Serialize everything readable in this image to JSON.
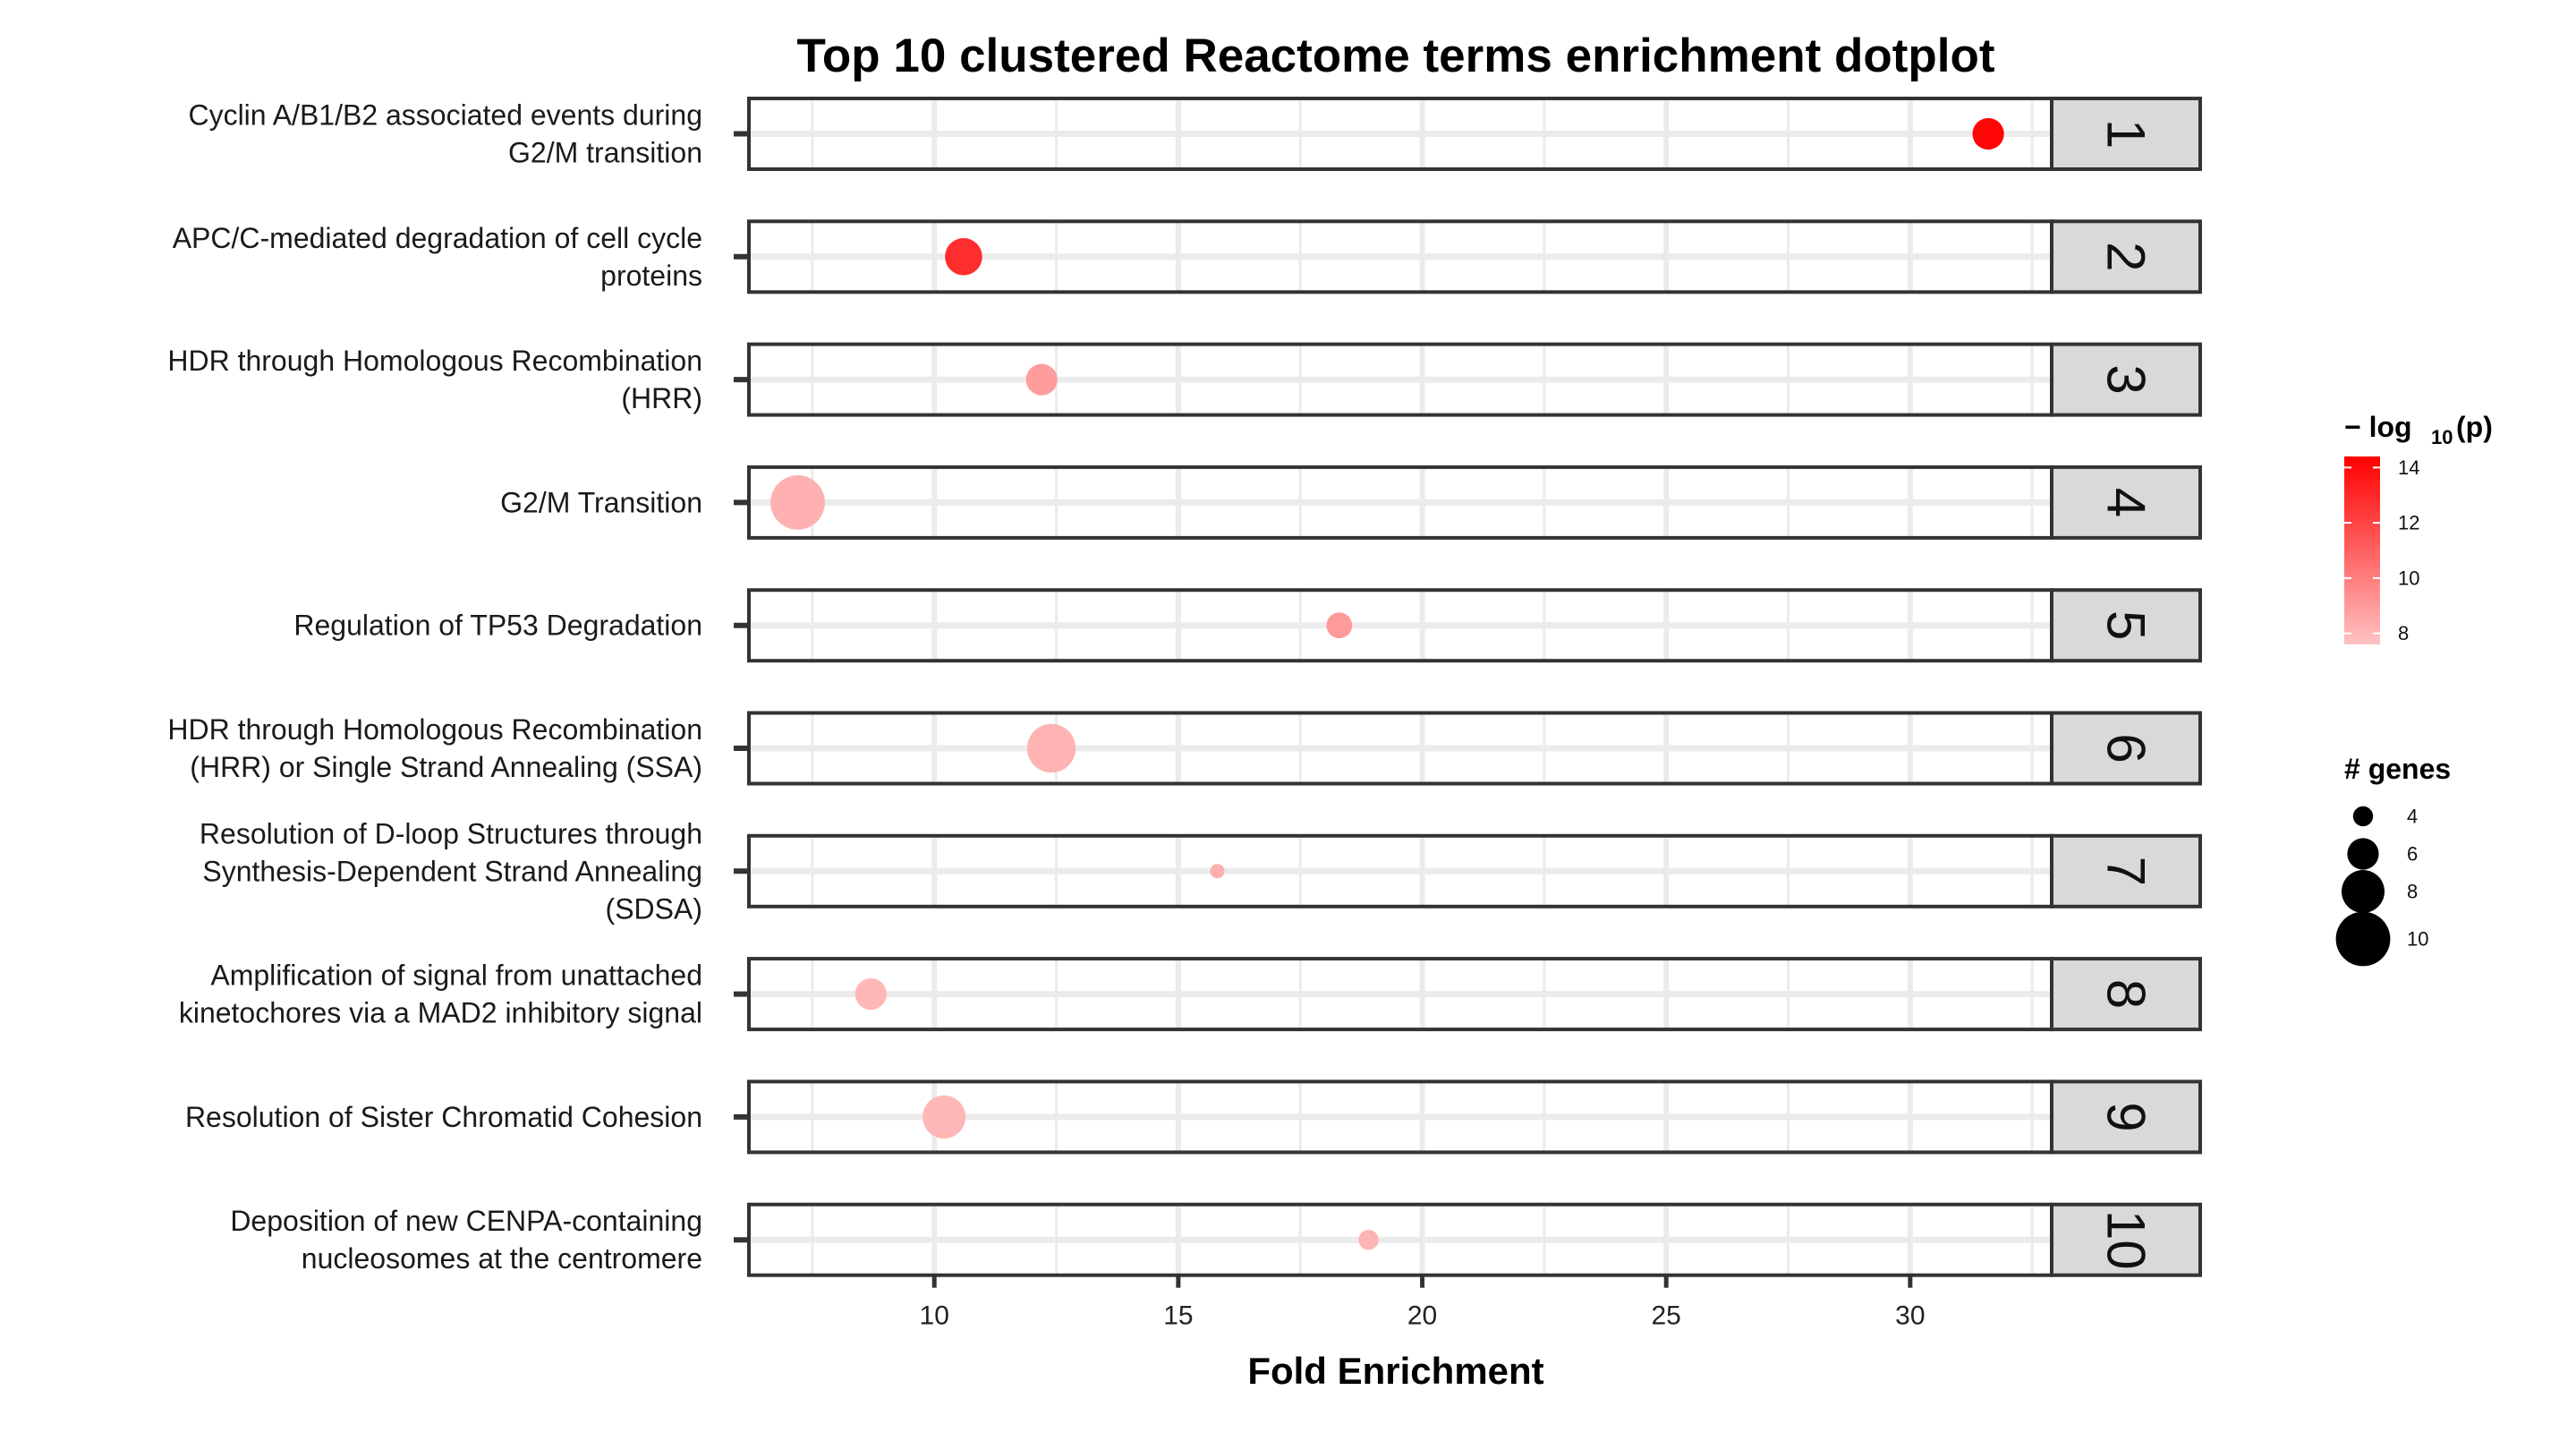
{
  "chart_data": {
    "type": "scatter",
    "title": "Top 10 clustered Reactome terms enrichment dotplot",
    "xlabel": "Fold Enrichment",
    "x_ticks": [
      10,
      15,
      20,
      25,
      30
    ],
    "xlim": [
      6.2,
      32.9
    ],
    "grid": true,
    "facets": [
      {
        "strip": "1",
        "term": [
          "Cyclin A/B1/B2 associated events during",
          "G2/M transition"
        ],
        "fold_enrichment": 31.6,
        "genes": 6,
        "neg_log10_p": 14.2
      },
      {
        "strip": "2",
        "term": [
          "APC/C-mediated degradation of cell cycle",
          "proteins"
        ],
        "fold_enrichment": 10.6,
        "genes": 7,
        "neg_log10_p": 12.8
      },
      {
        "strip": "3",
        "term": [
          "HDR through Homologous Recombination",
          "(HRR)"
        ],
        "fold_enrichment": 12.2,
        "genes": 6,
        "neg_log10_p": 8.9
      },
      {
        "strip": "4",
        "term": [
          "G2/M Transition"
        ],
        "fold_enrichment": 7.2,
        "genes": 10,
        "neg_log10_p": 8.2
      },
      {
        "strip": "5",
        "term": [
          "Regulation of TP53 Degradation"
        ],
        "fold_enrichment": 18.3,
        "genes": 5,
        "neg_log10_p": 9.0
      },
      {
        "strip": "6",
        "term": [
          "HDR through Homologous Recombination",
          "(HRR) or Single Strand Annealing (SSA)"
        ],
        "fold_enrichment": 12.4,
        "genes": 9,
        "neg_log10_p": 8.1
      },
      {
        "strip": "7",
        "term": [
          "Resolution of D-loop Structures through",
          "Synthesis-Dependent Strand Annealing",
          "(SDSA)"
        ],
        "fold_enrichment": 15.8,
        "genes": 3,
        "neg_log10_p": 8.3
      },
      {
        "strip": "8",
        "term": [
          "Amplification of signal from unattached",
          "kinetochores via a MAD2 inhibitory signal"
        ],
        "fold_enrichment": 8.7,
        "genes": 6,
        "neg_log10_p": 8.0
      },
      {
        "strip": "9",
        "term": [
          "Resolution of Sister Chromatid Cohesion"
        ],
        "fold_enrichment": 10.2,
        "genes": 8,
        "neg_log10_p": 8.0
      },
      {
        "strip": "10",
        "term": [
          "Deposition of new CENPA-containing",
          "nucleosomes at the centromere"
        ],
        "fold_enrichment": 18.9,
        "genes": 4,
        "neg_log10_p": 8.1
      }
    ],
    "color_legend": {
      "title": "− log",
      "title_sub": "10",
      "title_end": "(p)",
      "ticks": [
        14,
        12,
        10,
        8
      ],
      "range": [
        7.6,
        14.4
      ],
      "low_color": "#ffc2c2",
      "high_color": "#ff0000"
    },
    "size_legend": {
      "title": "# genes",
      "ticks": [
        4,
        6,
        8,
        10
      ]
    },
    "colors": {
      "panel_border": "#333333",
      "strip_fill": "#d9d9d9",
      "grid": "#ebebeb"
    }
  }
}
